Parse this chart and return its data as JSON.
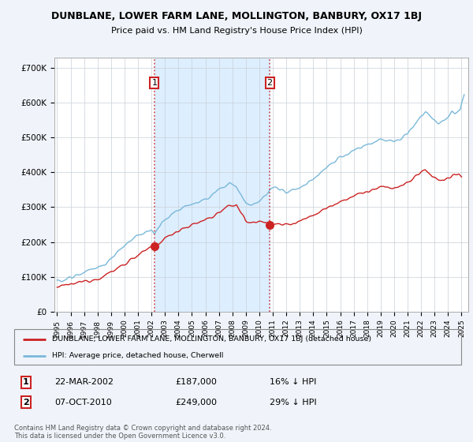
{
  "title": "DUNBLANE, LOWER FARM LANE, MOLLINGTON, BANBURY, OX17 1BJ",
  "subtitle": "Price paid vs. HM Land Registry's House Price Index (HPI)",
  "hpi_color": "#7ab8d9",
  "price_color": "#cc2222",
  "bg_color": "#f0f4fa",
  "plot_bg": "#ffffff",
  "shade_color": "#ddeeff",
  "legend_label_red": "DUNBLANE, LOWER FARM LANE, MOLLINGTON, BANBURY, OX17 1BJ (detached house)",
  "legend_label_blue": "HPI: Average price, detached house, Cherwell",
  "transaction1_date": "22-MAR-2002",
  "transaction1_price": "£187,000",
  "transaction1_note": "16% ↓ HPI",
  "transaction2_date": "07-OCT-2010",
  "transaction2_price": "£249,000",
  "transaction2_note": "29% ↓ HPI",
  "vline1_x": 2002.22,
  "vline2_x": 2010.77,
  "marker1_x": 2002.22,
  "marker1_y": 187000,
  "marker2_x": 2010.77,
  "marker2_y": 249000,
  "footnote": "Contains HM Land Registry data © Crown copyright and database right 2024.\nThis data is licensed under the Open Government Licence v3.0.",
  "ylim": [
    0,
    730000
  ],
  "xlim_left": 1994.8,
  "xlim_right": 2025.5,
  "key_points_red": [
    [
      1995.0,
      70000
    ],
    [
      1995.5,
      73000
    ],
    [
      1996.0,
      78000
    ],
    [
      1996.5,
      82000
    ],
    [
      1997.0,
      87000
    ],
    [
      1997.5,
      92000
    ],
    [
      1998.0,
      96000
    ],
    [
      1998.5,
      103000
    ],
    [
      1999.0,
      113000
    ],
    [
      1999.5,
      125000
    ],
    [
      2000.0,
      138000
    ],
    [
      2000.5,
      150000
    ],
    [
      2001.0,
      162000
    ],
    [
      2001.5,
      173000
    ],
    [
      2002.22,
      187000
    ],
    [
      2002.5,
      195000
    ],
    [
      2003.0,
      210000
    ],
    [
      2003.5,
      222000
    ],
    [
      2004.0,
      235000
    ],
    [
      2004.5,
      242000
    ],
    [
      2005.0,
      248000
    ],
    [
      2005.5,
      255000
    ],
    [
      2006.0,
      265000
    ],
    [
      2006.5,
      272000
    ],
    [
      2007.0,
      285000
    ],
    [
      2007.5,
      295000
    ],
    [
      2008.0,
      305000
    ],
    [
      2008.3,
      310000
    ],
    [
      2008.7,
      280000
    ],
    [
      2009.0,
      260000
    ],
    [
      2009.5,
      255000
    ],
    [
      2010.0,
      258000
    ],
    [
      2010.5,
      262000
    ],
    [
      2010.77,
      249000
    ],
    [
      2011.0,
      248000
    ],
    [
      2011.5,
      252000
    ],
    [
      2012.0,
      250000
    ],
    [
      2012.5,
      255000
    ],
    [
      2013.0,
      262000
    ],
    [
      2013.5,
      268000
    ],
    [
      2014.0,
      278000
    ],
    [
      2014.5,
      288000
    ],
    [
      2015.0,
      298000
    ],
    [
      2015.5,
      308000
    ],
    [
      2016.0,
      318000
    ],
    [
      2016.5,
      325000
    ],
    [
      2017.0,
      332000
    ],
    [
      2017.5,
      338000
    ],
    [
      2018.0,
      345000
    ],
    [
      2018.5,
      350000
    ],
    [
      2019.0,
      355000
    ],
    [
      2019.5,
      358000
    ],
    [
      2020.0,
      355000
    ],
    [
      2020.5,
      360000
    ],
    [
      2021.0,
      370000
    ],
    [
      2021.5,
      385000
    ],
    [
      2022.0,
      400000
    ],
    [
      2022.3,
      408000
    ],
    [
      2022.7,
      395000
    ],
    [
      2023.0,
      385000
    ],
    [
      2023.5,
      375000
    ],
    [
      2024.0,
      382000
    ],
    [
      2024.5,
      390000
    ],
    [
      2024.8,
      395000
    ],
    [
      2025.0,
      385000
    ]
  ],
  "key_points_blue": [
    [
      1995.0,
      88000
    ],
    [
      1995.5,
      92000
    ],
    [
      1996.0,
      97000
    ],
    [
      1996.5,
      103000
    ],
    [
      1997.0,
      110000
    ],
    [
      1997.5,
      118000
    ],
    [
      1998.0,
      126000
    ],
    [
      1998.5,
      138000
    ],
    [
      1999.0,
      152000
    ],
    [
      1999.5,
      170000
    ],
    [
      2000.0,
      188000
    ],
    [
      2000.5,
      205000
    ],
    [
      2001.0,
      218000
    ],
    [
      2001.5,
      228000
    ],
    [
      2002.0,
      235000
    ],
    [
      2002.22,
      222619
    ],
    [
      2002.5,
      245000
    ],
    [
      2003.0,
      265000
    ],
    [
      2003.5,
      280000
    ],
    [
      2004.0,
      292000
    ],
    [
      2004.5,
      300000
    ],
    [
      2005.0,
      308000
    ],
    [
      2005.5,
      315000
    ],
    [
      2006.0,
      325000
    ],
    [
      2006.5,
      335000
    ],
    [
      2007.0,
      350000
    ],
    [
      2007.5,
      362000
    ],
    [
      2007.8,
      368000
    ],
    [
      2008.3,
      355000
    ],
    [
      2008.7,
      330000
    ],
    [
      2009.0,
      310000
    ],
    [
      2009.5,
      308000
    ],
    [
      2010.0,
      318000
    ],
    [
      2010.5,
      335000
    ],
    [
      2010.77,
      350704
    ],
    [
      2011.0,
      355000
    ],
    [
      2011.5,
      350000
    ],
    [
      2012.0,
      345000
    ],
    [
      2012.5,
      348000
    ],
    [
      2013.0,
      355000
    ],
    [
      2013.5,
      368000
    ],
    [
      2014.0,
      382000
    ],
    [
      2014.5,
      398000
    ],
    [
      2015.0,
      415000
    ],
    [
      2015.5,
      430000
    ],
    [
      2016.0,
      445000
    ],
    [
      2016.5,
      455000
    ],
    [
      2017.0,
      465000
    ],
    [
      2017.5,
      472000
    ],
    [
      2018.0,
      480000
    ],
    [
      2018.5,
      488000
    ],
    [
      2019.0,
      492000
    ],
    [
      2019.5,
      495000
    ],
    [
      2020.0,
      492000
    ],
    [
      2020.5,
      498000
    ],
    [
      2021.0,
      512000
    ],
    [
      2021.5,
      535000
    ],
    [
      2022.0,
      565000
    ],
    [
      2022.3,
      575000
    ],
    [
      2022.5,
      568000
    ],
    [
      2022.8,
      555000
    ],
    [
      2023.0,
      548000
    ],
    [
      2023.3,
      542000
    ],
    [
      2023.7,
      548000
    ],
    [
      2024.0,
      558000
    ],
    [
      2024.3,
      572000
    ],
    [
      2024.5,
      565000
    ],
    [
      2024.7,
      570000
    ],
    [
      2024.9,
      580000
    ],
    [
      2025.0,
      600000
    ],
    [
      2025.2,
      620000
    ]
  ]
}
